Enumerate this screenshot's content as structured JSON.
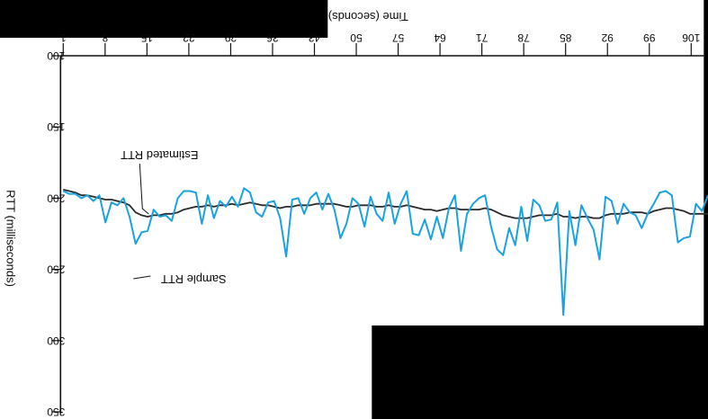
{
  "chart_data": {
    "type": "line",
    "xlabel": "Time (seconds)",
    "ylabel": "RTT (milliseconds)",
    "x_ticks": [
      "1",
      "8",
      "15",
      "22",
      "29",
      "36",
      "43",
      "50",
      "57",
      "64",
      "71",
      "78",
      "85",
      "92",
      "99",
      "106"
    ],
    "x_tick_values": [
      1,
      8,
      15,
      22,
      29,
      36,
      43,
      50,
      57,
      64,
      71,
      78,
      85,
      92,
      99,
      106
    ],
    "y_ticks": [
      "100",
      "150",
      "200",
      "250",
      "300",
      "350"
    ],
    "y_tick_values": [
      100,
      150,
      200,
      250,
      300,
      350
    ],
    "xlim": [
      1,
      108
    ],
    "ylim": [
      100,
      350
    ],
    "annotations": [
      "Estimated RTT",
      "Sample RTT"
    ],
    "colors": {
      "sample": "#1aa3e0",
      "estimated": "#2a2a2a",
      "axis": "#111111",
      "background": "#000000",
      "panel": "#ffffff"
    },
    "series": [
      {
        "name": "Sample RTT",
        "x": [
          1,
          2,
          3,
          4,
          5,
          6,
          7,
          8,
          9,
          10,
          11,
          12,
          13,
          14,
          15,
          16,
          17,
          18,
          19,
          20,
          21,
          22,
          23,
          24,
          25,
          26,
          27,
          28,
          29,
          30,
          31,
          32,
          33,
          34,
          35,
          36,
          37,
          38,
          39,
          40,
          41,
          42,
          43,
          44,
          45,
          46,
          47,
          48,
          49,
          50,
          51,
          52,
          53,
          54,
          55,
          56,
          57,
          58,
          59,
          60,
          61,
          62,
          63,
          64,
          65,
          66,
          67,
          68,
          69,
          70,
          71,
          72,
          73,
          74,
          75,
          76,
          77,
          78,
          79,
          80,
          81,
          82,
          83,
          84,
          85,
          86,
          87,
          88,
          89,
          90,
          91,
          92,
          93,
          94,
          95,
          96,
          97,
          98,
          99,
          100,
          101,
          102,
          103,
          104,
          105,
          106,
          107,
          108
        ],
        "y": [
          195,
          197,
          197,
          200,
          198,
          202,
          198,
          217,
          203,
          205,
          200,
          213,
          232,
          224,
          223,
          208,
          213,
          212,
          216,
          200,
          195,
          195,
          196,
          218,
          198,
          214,
          202,
          206,
          199,
          206,
          193,
          196,
          210,
          213,
          203,
          202,
          214,
          241,
          201,
          200,
          211,
          200,
          196,
          208,
          197,
          208,
          228,
          218,
          200,
          204,
          220,
          199,
          211,
          216,
          196,
          218,
          204,
          195,
          225,
          226,
          215,
          229,
          213,
          228,
          207,
          198,
          237,
          211,
          204,
          200,
          198,
          220,
          236,
          240,
          221,
          233,
          206,
          230,
          201,
          205,
          216,
          215,
          203,
          282,
          209,
          233,
          205,
          214,
          222,
          243,
          199,
          202,
          218,
          204,
          210,
          212,
          221,
          211,
          204,
          196,
          195,
          198,
          231,
          228,
          227,
          204,
          209,
          198
        ]
      },
      {
        "name": "Estimated RTT",
        "x": [
          1,
          2,
          3,
          4,
          5,
          6,
          7,
          8,
          9,
          10,
          11,
          12,
          13,
          14,
          15,
          16,
          17,
          18,
          19,
          20,
          21,
          22,
          23,
          24,
          25,
          26,
          27,
          28,
          29,
          30,
          31,
          32,
          33,
          34,
          35,
          36,
          37,
          38,
          39,
          40,
          41,
          42,
          43,
          44,
          45,
          46,
          47,
          48,
          49,
          50,
          51,
          52,
          53,
          54,
          55,
          56,
          57,
          58,
          59,
          60,
          61,
          62,
          63,
          64,
          65,
          66,
          67,
          68,
          69,
          70,
          71,
          72,
          73,
          74,
          75,
          76,
          77,
          78,
          79,
          80,
          81,
          82,
          83,
          84,
          85,
          86,
          87,
          88,
          89,
          90,
          91,
          92,
          93,
          94,
          95,
          96,
          97,
          98,
          99,
          100,
          101,
          102,
          103,
          104,
          105,
          106,
          107,
          108
        ],
        "y": [
          194,
          195,
          196,
          198,
          198,
          199,
          200,
          201,
          201,
          202,
          203,
          205,
          210,
          212,
          213,
          212,
          212,
          211,
          211,
          210,
          208,
          207,
          206,
          206,
          205,
          206,
          205,
          205,
          204,
          205,
          204,
          203,
          204,
          205,
          205,
          206,
          207,
          206,
          206,
          205,
          205,
          205,
          204,
          204,
          204,
          204,
          205,
          206,
          206,
          205,
          205,
          205,
          206,
          206,
          205,
          206,
          206,
          205,
          206,
          207,
          208,
          208,
          209,
          208,
          207,
          207,
          208,
          208,
          208,
          208,
          207,
          208,
          210,
          212,
          213,
          214,
          214,
          214,
          213,
          212,
          212,
          212,
          211,
          213,
          213,
          214,
          213,
          213,
          214,
          214,
          212,
          211,
          211,
          211,
          210,
          210,
          210,
          211,
          209,
          208,
          207,
          207,
          208,
          209,
          211,
          211,
          211,
          211
        ]
      }
    ]
  }
}
